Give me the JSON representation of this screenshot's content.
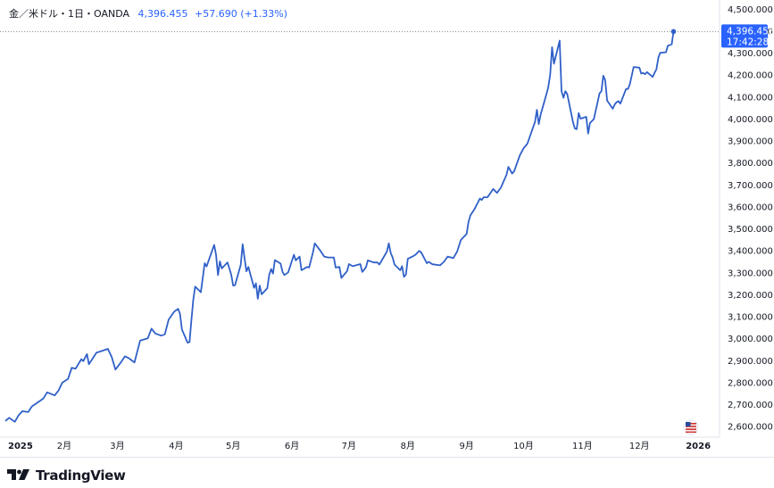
{
  "header": {
    "symbol": "金／米ドル・1日・OANDA",
    "last_price": "4,396.455",
    "change": "+57.690 (+1.33%)"
  },
  "price_label": {
    "price": "4,396.455",
    "time": "17:42:28"
  },
  "footer": {
    "brand": "TradingView",
    "logo_icon": "tradingview-logo-icon"
  },
  "colors": {
    "line": "#3060c8",
    "accent": "#2962ff",
    "text": "#131722",
    "axis_text": "#131722",
    "grid": "#e0e3eb"
  },
  "chart_data": {
    "type": "line",
    "title": "金／米ドル・1日・OANDA",
    "ylim": [
      2550,
      4540
    ],
    "y_ticks": [
      2600,
      2700,
      2800,
      2900,
      3000,
      3100,
      3200,
      3300,
      3400,
      3500,
      3600,
      3700,
      3800,
      3900,
      4000,
      4100,
      4200,
      4300,
      4400,
      4500
    ],
    "y_tick_labels": [
      "2,600.000",
      "2,700.000",
      "2,800.000",
      "2,900.000",
      "3,000.000",
      "3,100.000",
      "3,200.000",
      "3,300.000",
      "3,400.000",
      "3,500.000",
      "3,600.000",
      "3,700.000",
      "3,800.000",
      "3,900.000",
      "4,000.000",
      "4,100.000",
      "4,200.000",
      "4,300.000",
      "4,400.000",
      "4,500.000"
    ],
    "x_ticks": [
      {
        "label": "2025",
        "date": "2025-01-01",
        "bold": true
      },
      {
        "label": "2月",
        "date": "2025-02-01"
      },
      {
        "label": "3月",
        "date": "2025-03-01"
      },
      {
        "label": "4月",
        "date": "2025-04-01"
      },
      {
        "label": "5月",
        "date": "2025-05-01"
      },
      {
        "label": "6月",
        "date": "2025-06-01"
      },
      {
        "label": "7月",
        "date": "2025-07-01"
      },
      {
        "label": "8月",
        "date": "2025-08-01"
      },
      {
        "label": "9月",
        "date": "2025-09-01"
      },
      {
        "label": "10月",
        "date": "2025-10-01"
      },
      {
        "label": "11月",
        "date": "2025-11-01"
      },
      {
        "label": "12月",
        "date": "2025-12-01"
      },
      {
        "label": "2026",
        "date": "2026-01-01",
        "bold": true
      }
    ],
    "grid": false,
    "series": [
      {
        "points": [
          [
            "2025-01-01",
            2624
          ],
          [
            "2025-01-03",
            2638
          ],
          [
            "2025-01-06",
            2620
          ],
          [
            "2025-01-08",
            2650
          ],
          [
            "2025-01-10",
            2668
          ],
          [
            "2025-01-13",
            2664
          ],
          [
            "2025-01-15",
            2690
          ],
          [
            "2025-01-17",
            2702
          ],
          [
            "2025-01-21",
            2726
          ],
          [
            "2025-01-23",
            2754
          ],
          [
            "2025-01-27",
            2740
          ],
          [
            "2025-01-29",
            2762
          ],
          [
            "2025-01-31",
            2798
          ],
          [
            "2025-02-03",
            2815
          ],
          [
            "2025-02-05",
            2866
          ],
          [
            "2025-02-07",
            2862
          ],
          [
            "2025-02-10",
            2905
          ],
          [
            "2025-02-11",
            2896
          ],
          [
            "2025-02-13",
            2928
          ],
          [
            "2025-02-14",
            2882
          ],
          [
            "2025-02-18",
            2935
          ],
          [
            "2025-02-20",
            2940
          ],
          [
            "2025-02-24",
            2952
          ],
          [
            "2025-02-26",
            2915
          ],
          [
            "2025-02-28",
            2858
          ],
          [
            "2025-03-03",
            2892
          ],
          [
            "2025-03-05",
            2918
          ],
          [
            "2025-03-07",
            2910
          ],
          [
            "2025-03-10",
            2890
          ],
          [
            "2025-03-13",
            2990
          ],
          [
            "2025-03-17",
            3000
          ],
          [
            "2025-03-19",
            3044
          ],
          [
            "2025-03-21",
            3022
          ],
          [
            "2025-03-24",
            3012
          ],
          [
            "2025-03-26",
            3018
          ],
          [
            "2025-03-28",
            3085
          ],
          [
            "2025-03-31",
            3122
          ],
          [
            "2025-04-02",
            3134
          ],
          [
            "2025-04-03",
            3112
          ],
          [
            "2025-04-04",
            3040
          ],
          [
            "2025-04-07",
            2980
          ],
          [
            "2025-04-08",
            2983
          ],
          [
            "2025-04-09",
            3082
          ],
          [
            "2025-04-10",
            3175
          ],
          [
            "2025-04-11",
            3235
          ],
          [
            "2025-04-14",
            3210
          ],
          [
            "2025-04-16",
            3342
          ],
          [
            "2025-04-17",
            3327
          ],
          [
            "2025-04-21",
            3425
          ],
          [
            "2025-04-22",
            3380
          ],
          [
            "2025-04-23",
            3288
          ],
          [
            "2025-04-24",
            3350
          ],
          [
            "2025-04-25",
            3318
          ],
          [
            "2025-04-28",
            3345
          ],
          [
            "2025-04-29",
            3318
          ],
          [
            "2025-04-30",
            3290
          ],
          [
            "2025-05-01",
            3240
          ],
          [
            "2025-05-02",
            3242
          ],
          [
            "2025-05-05",
            3335
          ],
          [
            "2025-05-06",
            3428
          ],
          [
            "2025-05-07",
            3365
          ],
          [
            "2025-05-08",
            3305
          ],
          [
            "2025-05-09",
            3325
          ],
          [
            "2025-05-12",
            3230
          ],
          [
            "2025-05-13",
            3250
          ],
          [
            "2025-05-14",
            3180
          ],
          [
            "2025-05-15",
            3240
          ],
          [
            "2025-05-16",
            3200
          ],
          [
            "2025-05-19",
            3228
          ],
          [
            "2025-05-20",
            3290
          ],
          [
            "2025-05-21",
            3315
          ],
          [
            "2025-05-22",
            3295
          ],
          [
            "2025-05-23",
            3356
          ],
          [
            "2025-05-26",
            3340
          ],
          [
            "2025-05-27",
            3302
          ],
          [
            "2025-05-28",
            3288
          ],
          [
            "2025-05-30",
            3300
          ],
          [
            "2025-06-02",
            3380
          ],
          [
            "2025-06-03",
            3355
          ],
          [
            "2025-06-05",
            3372
          ],
          [
            "2025-06-06",
            3310
          ],
          [
            "2025-06-09",
            3325
          ],
          [
            "2025-06-10",
            3322
          ],
          [
            "2025-06-11",
            3355
          ],
          [
            "2025-06-12",
            3390
          ],
          [
            "2025-06-13",
            3432
          ],
          [
            "2025-06-16",
            3398
          ],
          [
            "2025-06-18",
            3372
          ],
          [
            "2025-06-20",
            3368
          ],
          [
            "2025-06-23",
            3368
          ],
          [
            "2025-06-24",
            3322
          ],
          [
            "2025-06-26",
            3325
          ],
          [
            "2025-06-27",
            3275
          ],
          [
            "2025-06-30",
            3305
          ],
          [
            "2025-07-01",
            3338
          ],
          [
            "2025-07-03",
            3328
          ],
          [
            "2025-07-07",
            3338
          ],
          [
            "2025-07-08",
            3302
          ],
          [
            "2025-07-09",
            3312
          ],
          [
            "2025-07-10",
            3325
          ],
          [
            "2025-07-11",
            3355
          ],
          [
            "2025-07-14",
            3345
          ],
          [
            "2025-07-16",
            3345
          ],
          [
            "2025-07-17",
            3336
          ],
          [
            "2025-07-18",
            3350
          ],
          [
            "2025-07-21",
            3395
          ],
          [
            "2025-07-22",
            3432
          ],
          [
            "2025-07-23",
            3388
          ],
          [
            "2025-07-24",
            3368
          ],
          [
            "2025-07-25",
            3336
          ],
          [
            "2025-07-28",
            3310
          ],
          [
            "2025-07-29",
            3328
          ],
          [
            "2025-07-30",
            3280
          ],
          [
            "2025-07-31",
            3290
          ],
          [
            "2025-08-01",
            3362
          ],
          [
            "2025-08-04",
            3375
          ],
          [
            "2025-08-05",
            3380
          ],
          [
            "2025-08-07",
            3398
          ],
          [
            "2025-08-08",
            3392
          ],
          [
            "2025-08-11",
            3342
          ],
          [
            "2025-08-12",
            3348
          ],
          [
            "2025-08-14",
            3337
          ],
          [
            "2025-08-18",
            3332
          ],
          [
            "2025-08-20",
            3348
          ],
          [
            "2025-08-22",
            3372
          ],
          [
            "2025-08-25",
            3365
          ],
          [
            "2025-08-27",
            3395
          ],
          [
            "2025-08-29",
            3448
          ],
          [
            "2025-09-01",
            3475
          ],
          [
            "2025-09-02",
            3530
          ],
          [
            "2025-09-03",
            3560
          ],
          [
            "2025-09-05",
            3586
          ],
          [
            "2025-09-08",
            3636
          ],
          [
            "2025-09-09",
            3630
          ],
          [
            "2025-09-10",
            3642
          ],
          [
            "2025-09-12",
            3642
          ],
          [
            "2025-09-15",
            3680
          ],
          [
            "2025-09-17",
            3662
          ],
          [
            "2025-09-19",
            3685
          ],
          [
            "2025-09-22",
            3745
          ],
          [
            "2025-09-23",
            3780
          ],
          [
            "2025-09-25",
            3750
          ],
          [
            "2025-09-26",
            3760
          ],
          [
            "2025-09-29",
            3832
          ],
          [
            "2025-10-01",
            3865
          ],
          [
            "2025-10-03",
            3886
          ],
          [
            "2025-10-06",
            3960
          ],
          [
            "2025-10-07",
            3985
          ],
          [
            "2025-10-08",
            4040
          ],
          [
            "2025-10-09",
            3975
          ],
          [
            "2025-10-10",
            4018
          ],
          [
            "2025-10-13",
            4110
          ],
          [
            "2025-10-14",
            4142
          ],
          [
            "2025-10-15",
            4200
          ],
          [
            "2025-10-16",
            4325
          ],
          [
            "2025-10-17",
            4250
          ],
          [
            "2025-10-20",
            4355
          ],
          [
            "2025-10-21",
            4125
          ],
          [
            "2025-10-22",
            4095
          ],
          [
            "2025-10-23",
            4125
          ],
          [
            "2025-10-24",
            4112
          ],
          [
            "2025-10-27",
            3985
          ],
          [
            "2025-10-28",
            3955
          ],
          [
            "2025-10-29",
            3952
          ],
          [
            "2025-10-30",
            4025
          ],
          [
            "2025-10-31",
            4000
          ],
          [
            "2025-11-03",
            4008
          ],
          [
            "2025-11-04",
            3932
          ],
          [
            "2025-11-05",
            3980
          ],
          [
            "2025-11-07",
            3998
          ],
          [
            "2025-11-10",
            4115
          ],
          [
            "2025-11-11",
            4125
          ],
          [
            "2025-11-12",
            4195
          ],
          [
            "2025-11-13",
            4175
          ],
          [
            "2025-11-14",
            4082
          ],
          [
            "2025-11-17",
            4045
          ],
          [
            "2025-11-18",
            4065
          ],
          [
            "2025-11-19",
            4075
          ],
          [
            "2025-11-20",
            4080
          ],
          [
            "2025-11-21",
            4068
          ],
          [
            "2025-11-24",
            4135
          ],
          [
            "2025-11-25",
            4135
          ],
          [
            "2025-11-26",
            4158
          ],
          [
            "2025-11-28",
            4235
          ],
          [
            "2025-12-01",
            4232
          ],
          [
            "2025-12-02",
            4205
          ],
          [
            "2025-12-03",
            4208
          ],
          [
            "2025-12-04",
            4202
          ],
          [
            "2025-12-05",
            4212
          ],
          [
            "2025-12-08",
            4190
          ],
          [
            "2025-12-09",
            4208
          ],
          [
            "2025-12-10",
            4225
          ],
          [
            "2025-12-11",
            4278
          ],
          [
            "2025-12-12",
            4300
          ],
          [
            "2025-12-15",
            4302
          ],
          [
            "2025-12-16",
            4332
          ],
          [
            "2025-12-17",
            4335
          ],
          [
            "2025-12-18",
            4338
          ],
          [
            "2025-12-19",
            4396.455
          ]
        ]
      }
    ],
    "last_value": 4396.455
  }
}
